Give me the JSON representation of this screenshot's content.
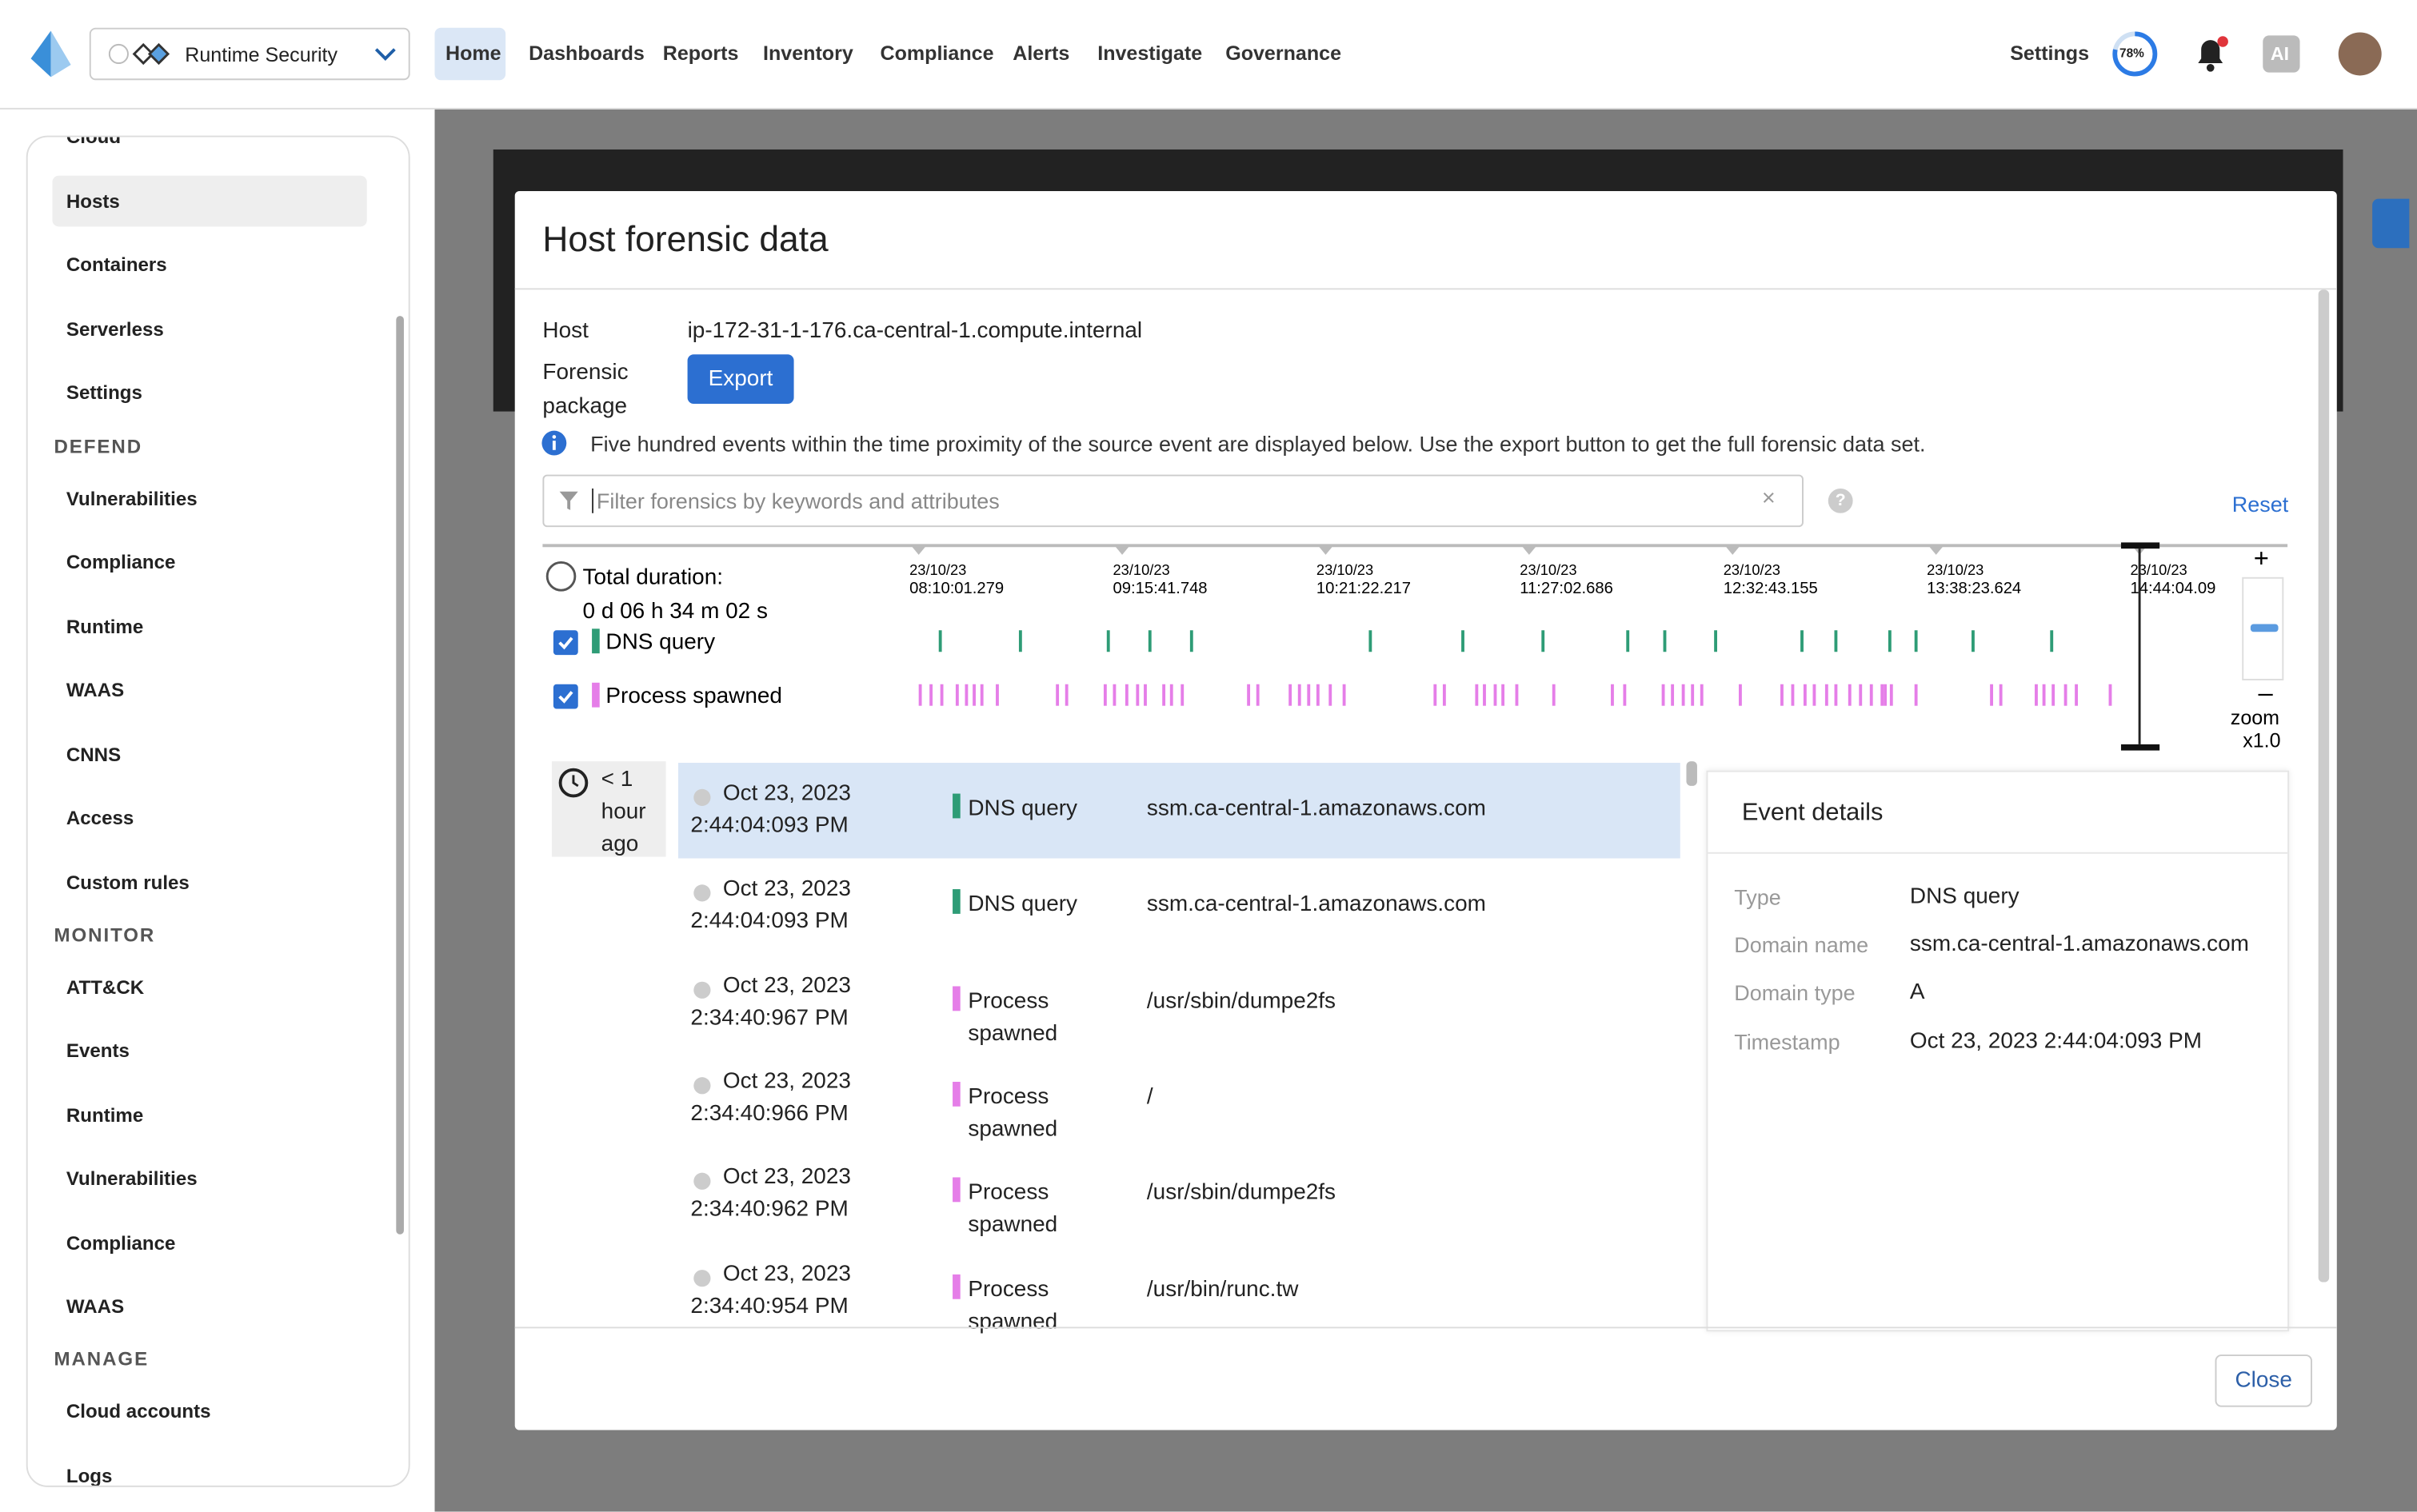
{
  "nav": {
    "product": "Runtime Security",
    "menu": [
      "Home",
      "Dashboards",
      "Reports",
      "Inventory",
      "Compliance",
      "Alerts",
      "Investigate",
      "Governance"
    ],
    "settings": "Settings",
    "progress": "78%",
    "ai": "AI"
  },
  "sidebar": {
    "top": [
      "Cloud",
      "Hosts",
      "Containers",
      "Serverless",
      "Settings"
    ],
    "sections": [
      {
        "title": "DEFEND",
        "items": [
          "Vulnerabilities",
          "Compliance",
          "Runtime",
          "WAAS",
          "CNNS",
          "Access",
          "Custom rules"
        ]
      },
      {
        "title": "MONITOR",
        "items": [
          "ATT&CK",
          "Events",
          "Runtime",
          "Vulnerabilities",
          "Compliance",
          "WAAS"
        ]
      },
      {
        "title": "MANAGE",
        "items": [
          "Cloud accounts",
          "Logs"
        ]
      }
    ]
  },
  "modal": {
    "title": "Host forensic data",
    "host_label": "Host",
    "host": "ip-172-31-1-176.ca-central-1.compute.internal",
    "package_label": "Forensic package",
    "export": "Export",
    "info": "Five hundred events within the time proximity of the source event are displayed below. Use the export button to get the full forensic data set.",
    "filter_placeholder": "Filter forensics by keywords and attributes",
    "reset": "Reset",
    "timeline": {
      "duration_label": "Total duration:",
      "duration": "0 d 06 h 34 m 02 s",
      "ticks": [
        {
          "date": "23/10/23",
          "time": "08:10:01.279"
        },
        {
          "date": "23/10/23",
          "time": "09:15:41.748"
        },
        {
          "date": "23/10/23",
          "time": "10:21:22.217"
        },
        {
          "date": "23/10/23",
          "time": "11:27:02.686"
        },
        {
          "date": "23/10/23",
          "time": "12:32:43.155"
        },
        {
          "date": "23/10/23",
          "time": "13:38:23.624"
        },
        {
          "date": "23/10/23",
          "time": "14:44:04.09"
        }
      ],
      "series": [
        {
          "name": "DNS query",
          "color": "#2e9c76"
        },
        {
          "name": "Process spawned",
          "color": "#e57ee8"
        }
      ],
      "zoom": "zoom",
      "zoom_level": "x1.0"
    },
    "group": "< 1 hour ago",
    "events": [
      {
        "date": "Oct 23, 2023",
        "time": "2:44:04:093 PM",
        "type": "DNS query",
        "detail": "ssm.ca-central-1.amazonaws.com"
      },
      {
        "date": "Oct 23, 2023",
        "time": "2:44:04:093 PM",
        "type": "DNS query",
        "detail": "ssm.ca-central-1.amazonaws.com"
      },
      {
        "date": "Oct 23, 2023",
        "time": "2:34:40:967 PM",
        "type": "Process spawned",
        "detail": "/usr/sbin/dumpe2fs"
      },
      {
        "date": "Oct 23, 2023",
        "time": "2:34:40:966 PM",
        "type": "Process spawned",
        "detail": "/"
      },
      {
        "date": "Oct 23, 2023",
        "time": "2:34:40:962 PM",
        "type": "Process spawned",
        "detail": "/usr/sbin/dumpe2fs"
      },
      {
        "date": "Oct 23, 2023",
        "time": "2:34:40:954 PM",
        "type": "Process spawned",
        "detail": "/usr/bin/runc.tw"
      }
    ],
    "details": {
      "title": "Event details",
      "fields": [
        {
          "key": "Type",
          "value": "DNS query"
        },
        {
          "key": "Domain name",
          "value": "ssm.ca-central-1.amazonaws.com"
        },
        {
          "key": "Domain type",
          "value": "A"
        },
        {
          "key": "Timestamp",
          "value": "Oct 23, 2023 2:44:04:093 PM"
        }
      ]
    },
    "close": "Close"
  }
}
